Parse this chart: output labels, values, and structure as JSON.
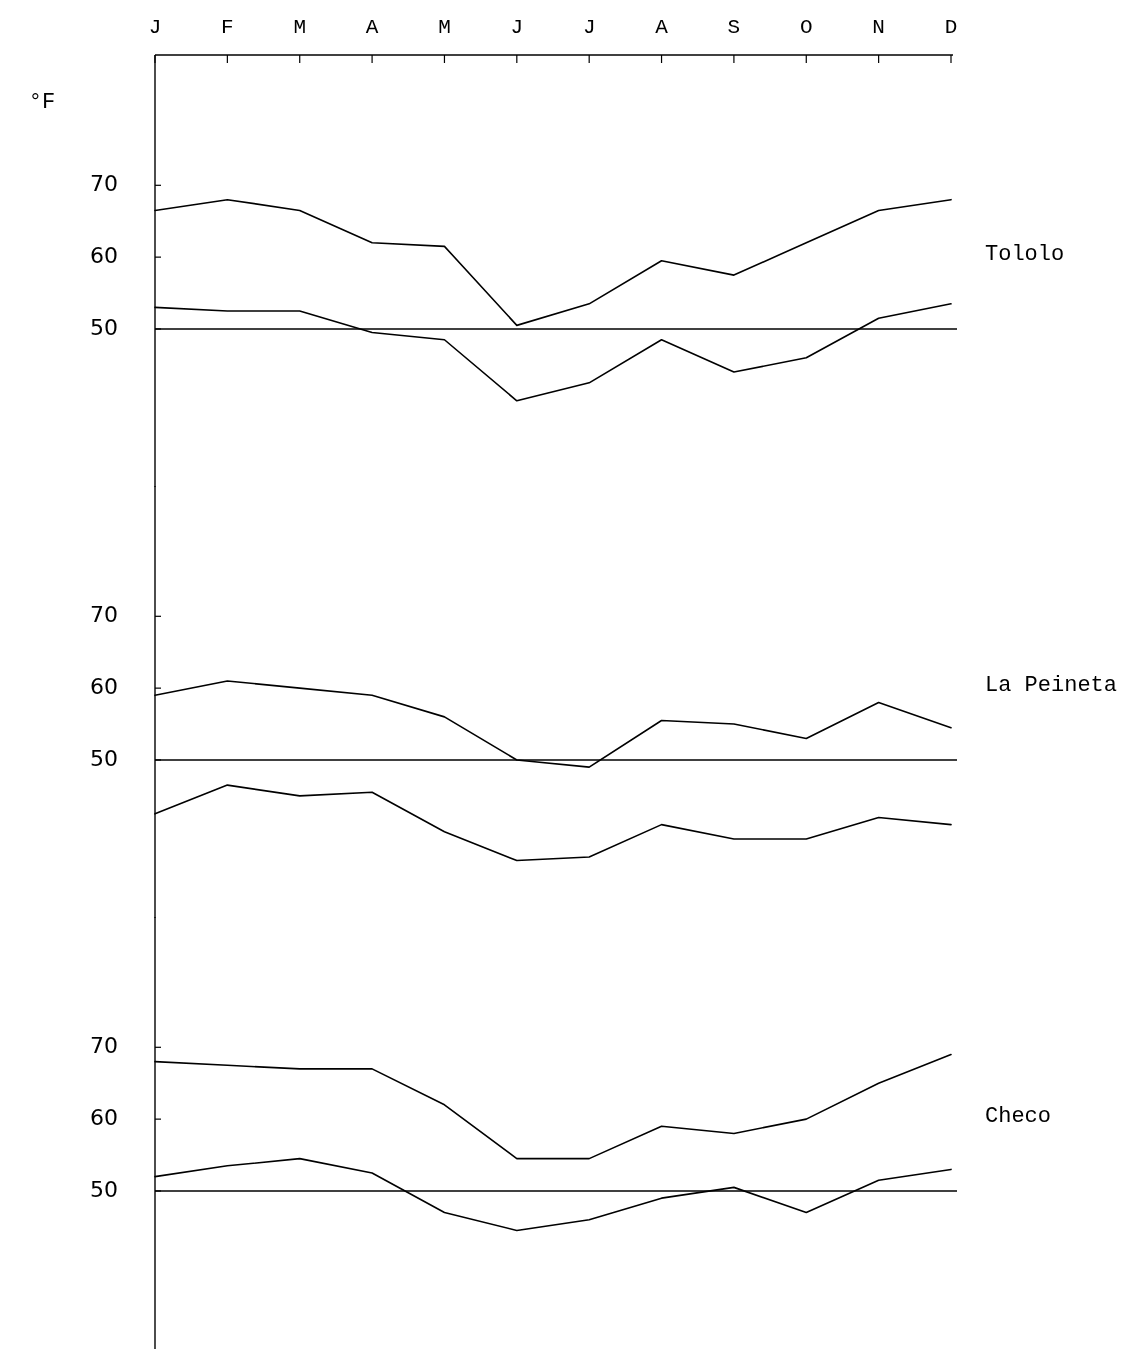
{
  "chart_data": [
    {
      "type": "line",
      "annotations": [
        "Tololo"
      ],
      "ylabel": "°F",
      "categories": [
        "J",
        "F",
        "M",
        "A",
        "M",
        "J",
        "J",
        "A",
        "S",
        "O",
        "N",
        "D"
      ],
      "series": [
        {
          "color": "#000000",
          "values": [
            66.5,
            68,
            66.5,
            62,
            61.5,
            50.5,
            53.5,
            59.5,
            57.5,
            62,
            66.5,
            68
          ]
        },
        {
          "color": "#000000",
          "values": [
            53,
            52.5,
            52.5,
            49.5,
            48.5,
            40,
            42.5,
            48.5,
            44,
            46,
            51.5,
            53.5
          ]
        }
      ],
      "ylim": [
        28,
        88
      ],
      "yticks": [
        50,
        60,
        70
      ],
      "ref_lines": [
        {
          "axis": "y",
          "value": 50,
          "color": "#000000"
        }
      ]
    },
    {
      "type": "line",
      "annotations": [
        "La Peineta"
      ],
      "categories": [
        "J",
        "F",
        "M",
        "A",
        "M",
        "J",
        "J",
        "A",
        "S",
        "O",
        "N",
        "D"
      ],
      "series": [
        {
          "color": "#000000",
          "values": [
            59,
            61,
            60,
            59,
            56,
            50,
            49,
            55.5,
            55,
            53,
            58,
            54.5
          ]
        },
        {
          "color": "#000000",
          "values": [
            42.5,
            46.5,
            45,
            45.5,
            40,
            36,
            36.5,
            41,
            39,
            39,
            42,
            41
          ]
        }
      ],
      "ylim": [
        28,
        88
      ],
      "yticks": [
        50,
        60,
        70
      ],
      "tick_labels": "y",
      "ref_lines": [
        {
          "axis": "y",
          "value": 50,
          "color": "#000000"
        }
      ]
    },
    {
      "type": "line",
      "annotations": [
        "Checo"
      ],
      "categories": [
        "J",
        "F",
        "M",
        "A",
        "M",
        "J",
        "J",
        "A",
        "S",
        "O",
        "N",
        "D"
      ],
      "series": [
        {
          "color": "#000000",
          "values": [
            68,
            67.5,
            67,
            67,
            62,
            54.5,
            54.5,
            59,
            58,
            60,
            65,
            69
          ]
        },
        {
          "color": "#000000",
          "values": [
            52,
            53.5,
            54.5,
            52.5,
            47,
            44.5,
            46,
            49,
            50.5,
            47,
            51.5,
            53
          ]
        }
      ],
      "ylim": [
        28,
        88
      ],
      "yticks": [
        50,
        60,
        70
      ],
      "tick_labels": "y",
      "ref_lines": [
        {
          "axis": "y",
          "value": 50,
          "color": "#000000"
        }
      ]
    }
  ]
}
